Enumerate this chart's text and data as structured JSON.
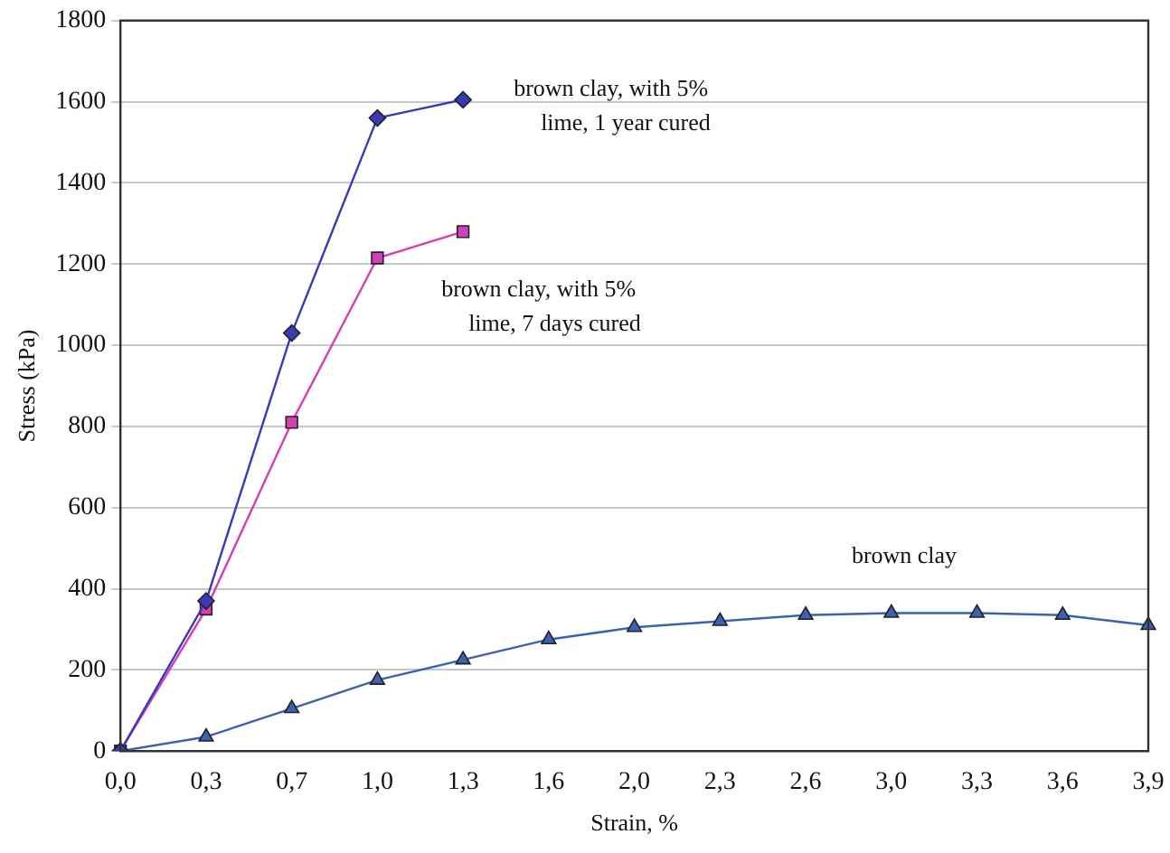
{
  "chart_data": {
    "type": "line",
    "xlabel": "Strain, %",
    "ylabel": "Stress (kPa)",
    "categories": [
      "0,0",
      "0,3",
      "0,7",
      "1,0",
      "1,3",
      "1,6",
      "2,0",
      "2,3",
      "2,6",
      "3,0",
      "3,3",
      "3,6",
      "3,9"
    ],
    "series": [
      {
        "name": "brown clay, with 5% lime, 1 year cured",
        "color": "#3a3ab8",
        "marker": "diamond",
        "values": [
          0,
          370,
          1030,
          1560,
          1605,
          null,
          null,
          null,
          null,
          null,
          null,
          null,
          null
        ]
      },
      {
        "name": "brown clay, with 5% lime, 7 days cured",
        "color": "#d63fb4",
        "marker": "square",
        "values": [
          0,
          350,
          810,
          1215,
          1280,
          null,
          null,
          null,
          null,
          null,
          null,
          null,
          null
        ]
      },
      {
        "name": "brown clay",
        "color": "#3b62b0",
        "marker": "triangle",
        "values": [
          0,
          35,
          105,
          175,
          225,
          275,
          305,
          320,
          335,
          340,
          340,
          335,
          310
        ]
      }
    ],
    "ylim": [
      0,
      1800
    ],
    "yticks": [
      0,
      200,
      400,
      600,
      800,
      1000,
      1200,
      1400,
      1600,
      1800
    ],
    "grid": "y",
    "legend": false
  }
}
